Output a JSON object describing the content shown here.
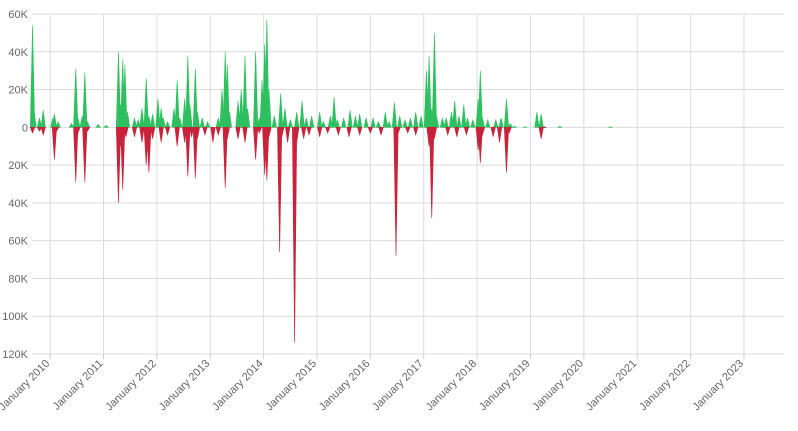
{
  "chart_data": {
    "type": "area",
    "y_ticks": [
      {
        "value": 60000,
        "label": "60K"
      },
      {
        "value": 40000,
        "label": "40K"
      },
      {
        "value": 20000,
        "label": "20K"
      },
      {
        "value": 0,
        "label": "0"
      },
      {
        "value": -20000,
        "label": "20K"
      },
      {
        "value": -40000,
        "label": "40K"
      },
      {
        "value": -60000,
        "label": "60K"
      },
      {
        "value": -80000,
        "label": "80K"
      },
      {
        "value": -100000,
        "label": "100K"
      },
      {
        "value": -120000,
        "label": "120K"
      }
    ],
    "ylim": [
      -120000,
      60000
    ],
    "x_ticks": [
      {
        "value": 2010,
        "label": "January 2010"
      },
      {
        "value": 2011,
        "label": "January 2011"
      },
      {
        "value": 2012,
        "label": "January 2012"
      },
      {
        "value": 2013,
        "label": "January 2013"
      },
      {
        "value": 2014,
        "label": "January 2014"
      },
      {
        "value": 2015,
        "label": "January 2015"
      },
      {
        "value": 2016,
        "label": "January 2016"
      },
      {
        "value": 2017,
        "label": "January 2017"
      },
      {
        "value": 2018,
        "label": "January 2018"
      },
      {
        "value": 2019,
        "label": "January 2019"
      },
      {
        "value": 2020,
        "label": "January 2020"
      },
      {
        "value": 2021,
        "label": "January 2021"
      },
      {
        "value": 2022,
        "label": "January 2022"
      },
      {
        "value": 2023,
        "label": "January 2023"
      }
    ],
    "xlim": [
      2009.66,
      2023.75
    ],
    "grid": true,
    "series": [
      {
        "color": "#2ebf5e",
        "points": [
          [
            2009.67,
            54000
          ],
          [
            2009.7,
            8000
          ],
          [
            2009.8,
            5000
          ],
          [
            2009.87,
            9000
          ],
          [
            2010.05,
            5000
          ],
          [
            2010.08,
            7000
          ],
          [
            2010.15,
            3000
          ],
          [
            2010.4,
            2000
          ],
          [
            2010.48,
            31000
          ],
          [
            2010.52,
            5000
          ],
          [
            2010.6,
            6000
          ],
          [
            2010.65,
            29000
          ],
          [
            2010.7,
            3000
          ],
          [
            2010.9,
            1500
          ],
          [
            2011.05,
            1000
          ],
          [
            2011.28,
            40000
          ],
          [
            2011.32,
            12000
          ],
          [
            2011.36,
            36000
          ],
          [
            2011.4,
            33000
          ],
          [
            2011.45,
            8000
          ],
          [
            2011.58,
            5000
          ],
          [
            2011.65,
            4000
          ],
          [
            2011.72,
            10000
          ],
          [
            2011.8,
            26000
          ],
          [
            2011.85,
            6000
          ],
          [
            2011.92,
            7000
          ],
          [
            2012.02,
            15000
          ],
          [
            2012.08,
            10000
          ],
          [
            2012.12,
            5000
          ],
          [
            2012.2,
            3000
          ],
          [
            2012.32,
            10000
          ],
          [
            2012.38,
            25000
          ],
          [
            2012.43,
            5000
          ],
          [
            2012.52,
            15000
          ],
          [
            2012.58,
            38000
          ],
          [
            2012.62,
            12000
          ],
          [
            2012.72,
            31000
          ],
          [
            2012.76,
            8000
          ],
          [
            2012.85,
            5000
          ],
          [
            2012.95,
            3000
          ],
          [
            2013.15,
            5000
          ],
          [
            2013.22,
            20000
          ],
          [
            2013.28,
            40000
          ],
          [
            2013.32,
            33000
          ],
          [
            2013.36,
            8000
          ],
          [
            2013.52,
            14000
          ],
          [
            2013.58,
            20000
          ],
          [
            2013.65,
            38000
          ],
          [
            2013.7,
            10000
          ],
          [
            2013.85,
            40000
          ],
          [
            2013.92,
            5000
          ],
          [
            2013.97,
            25000
          ],
          [
            2014.02,
            44000
          ],
          [
            2014.06,
            57000
          ],
          [
            2014.1,
            20000
          ],
          [
            2014.2,
            6000
          ],
          [
            2014.32,
            18000
          ],
          [
            2014.4,
            10000
          ],
          [
            2014.5,
            4000
          ],
          [
            2014.62,
            8000
          ],
          [
            2014.72,
            14000
          ],
          [
            2014.8,
            5000
          ],
          [
            2014.9,
            6000
          ],
          [
            2015.05,
            8000
          ],
          [
            2015.12,
            3000
          ],
          [
            2015.25,
            6000
          ],
          [
            2015.32,
            16000
          ],
          [
            2015.38,
            4000
          ],
          [
            2015.5,
            5000
          ],
          [
            2015.62,
            9000
          ],
          [
            2015.72,
            6000
          ],
          [
            2015.8,
            7000
          ],
          [
            2015.92,
            5000
          ],
          [
            2016.05,
            5000
          ],
          [
            2016.15,
            3000
          ],
          [
            2016.28,
            8000
          ],
          [
            2016.35,
            3000
          ],
          [
            2016.45,
            13000
          ],
          [
            2016.55,
            6000
          ],
          [
            2016.65,
            4000
          ],
          [
            2016.75,
            5000
          ],
          [
            2016.85,
            8000
          ],
          [
            2016.95,
            6000
          ],
          [
            2017.05,
            30000
          ],
          [
            2017.1,
            38000
          ],
          [
            2017.15,
            10000
          ],
          [
            2017.2,
            50000
          ],
          [
            2017.24,
            6000
          ],
          [
            2017.35,
            5000
          ],
          [
            2017.42,
            5000
          ],
          [
            2017.52,
            8000
          ],
          [
            2017.58,
            14000
          ],
          [
            2017.66,
            6000
          ],
          [
            2017.75,
            12000
          ],
          [
            2017.82,
            5000
          ],
          [
            2017.92,
            4000
          ],
          [
            2018.02,
            15000
          ],
          [
            2018.06,
            30000
          ],
          [
            2018.1,
            5000
          ],
          [
            2018.2,
            4000
          ],
          [
            2018.35,
            4000
          ],
          [
            2018.45,
            5000
          ],
          [
            2018.55,
            15000
          ],
          [
            2018.62,
            2000
          ],
          [
            2018.7,
            500
          ],
          [
            2018.9,
            300
          ],
          [
            2019.12,
            8000
          ],
          [
            2019.2,
            7000
          ],
          [
            2019.26,
            300
          ],
          [
            2019.55,
            500
          ],
          [
            2020.5,
            300
          ]
        ]
      },
      {
        "color": "#c8233a",
        "points": [
          [
            2009.67,
            -3000
          ],
          [
            2009.8,
            -2000
          ],
          [
            2009.87,
            -4000
          ],
          [
            2010.08,
            -17000
          ],
          [
            2010.12,
            -2000
          ],
          [
            2010.48,
            -29000
          ],
          [
            2010.52,
            -3000
          ],
          [
            2010.65,
            -29000
          ],
          [
            2010.7,
            -2000
          ],
          [
            2011.28,
            -40000
          ],
          [
            2011.32,
            -10000
          ],
          [
            2011.36,
            -33000
          ],
          [
            2011.42,
            -5000
          ],
          [
            2011.58,
            -5000
          ],
          [
            2011.72,
            -8000
          ],
          [
            2011.8,
            -20000
          ],
          [
            2011.85,
            -24000
          ],
          [
            2011.92,
            -6000
          ],
          [
            2012.08,
            -8000
          ],
          [
            2012.2,
            -4000
          ],
          [
            2012.38,
            -10000
          ],
          [
            2012.52,
            -8000
          ],
          [
            2012.58,
            -26000
          ],
          [
            2012.65,
            -5000
          ],
          [
            2012.72,
            -27000
          ],
          [
            2012.76,
            -6000
          ],
          [
            2012.9,
            -4000
          ],
          [
            2013.05,
            -8000
          ],
          [
            2013.15,
            -4000
          ],
          [
            2013.28,
            -32000
          ],
          [
            2013.32,
            -6000
          ],
          [
            2013.52,
            -6000
          ],
          [
            2013.65,
            -8000
          ],
          [
            2013.85,
            -17000
          ],
          [
            2013.92,
            -3000
          ],
          [
            2014.02,
            -25000
          ],
          [
            2014.06,
            -28000
          ],
          [
            2014.1,
            -5000
          ],
          [
            2014.3,
            -66000
          ],
          [
            2014.34,
            -5000
          ],
          [
            2014.45,
            -8000
          ],
          [
            2014.58,
            -114000
          ],
          [
            2014.62,
            -8000
          ],
          [
            2014.75,
            -6000
          ],
          [
            2014.85,
            -4000
          ],
          [
            2015.05,
            -5000
          ],
          [
            2015.2,
            -3000
          ],
          [
            2015.4,
            -4000
          ],
          [
            2015.6,
            -5000
          ],
          [
            2015.8,
            -4000
          ],
          [
            2016.0,
            -3000
          ],
          [
            2016.2,
            -4000
          ],
          [
            2016.48,
            -68000
          ],
          [
            2016.52,
            -3000
          ],
          [
            2016.7,
            -3000
          ],
          [
            2016.85,
            -4000
          ],
          [
            2017.1,
            -10000
          ],
          [
            2017.15,
            -48000
          ],
          [
            2017.2,
            -6000
          ],
          [
            2017.45,
            -4000
          ],
          [
            2017.62,
            -5000
          ],
          [
            2017.8,
            -4000
          ],
          [
            2018.02,
            -12000
          ],
          [
            2018.06,
            -19000
          ],
          [
            2018.1,
            -4000
          ],
          [
            2018.3,
            -5000
          ],
          [
            2018.42,
            -8000
          ],
          [
            2018.55,
            -24000
          ],
          [
            2018.6,
            -3000
          ],
          [
            2019.2,
            -6000
          ],
          [
            2019.25,
            -300
          ]
        ]
      }
    ]
  }
}
